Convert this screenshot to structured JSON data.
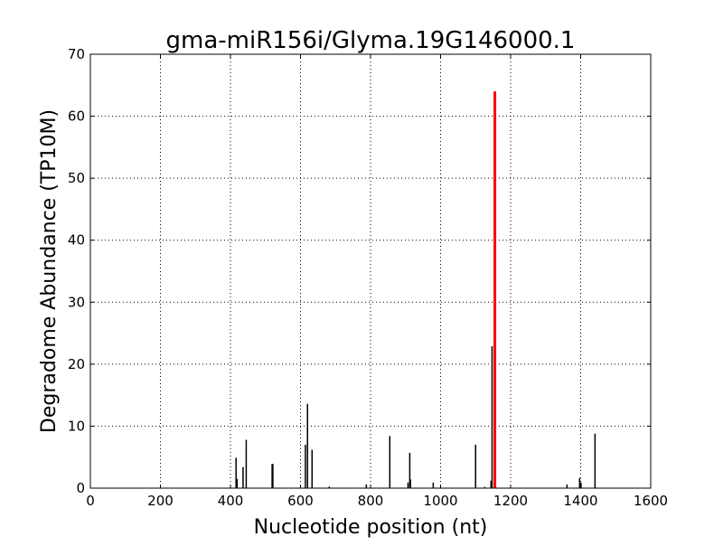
{
  "chart_data": {
    "type": "bar",
    "title": "gma-miR156i/Glyma.19G146000.1",
    "xlabel": "Nucleotide position (nt)",
    "ylabel": "Degradome Abundance (TP10M)",
    "xlim": [
      0,
      1600
    ],
    "ylim": [
      0,
      70
    ],
    "xticks": [
      0,
      200,
      400,
      600,
      800,
      1000,
      1200,
      1400,
      1600
    ],
    "yticks": [
      0,
      10,
      20,
      30,
      40,
      50,
      60,
      70
    ],
    "grid": true,
    "colors": {
      "bars": "#000000",
      "highlight": "#ff0000"
    },
    "bars": [
      {
        "x": 416,
        "y": 4.9
      },
      {
        "x": 419,
        "y": 1.5
      },
      {
        "x": 436,
        "y": 3.4
      },
      {
        "x": 445,
        "y": 7.8
      },
      {
        "x": 519,
        "y": 3.9
      },
      {
        "x": 521,
        "y": 3.9
      },
      {
        "x": 614,
        "y": 7.0
      },
      {
        "x": 620,
        "y": 13.6
      },
      {
        "x": 633,
        "y": 6.2
      },
      {
        "x": 682,
        "y": 0.25
      },
      {
        "x": 788,
        "y": 0.6
      },
      {
        "x": 855,
        "y": 8.4
      },
      {
        "x": 907,
        "y": 0.9
      },
      {
        "x": 912,
        "y": 5.7
      },
      {
        "x": 914,
        "y": 1.4
      },
      {
        "x": 979,
        "y": 0.9
      },
      {
        "x": 1100,
        "y": 7.0
      },
      {
        "x": 1126,
        "y": 0.2
      },
      {
        "x": 1144,
        "y": 1.2
      },
      {
        "x": 1147,
        "y": 22.9
      },
      {
        "x": 1361,
        "y": 0.6
      },
      {
        "x": 1397,
        "y": 1.65
      },
      {
        "x": 1401,
        "y": 0.9
      },
      {
        "x": 1441,
        "y": 8.8
      }
    ],
    "highlight": {
      "x": 1155,
      "y": 64
    }
  }
}
